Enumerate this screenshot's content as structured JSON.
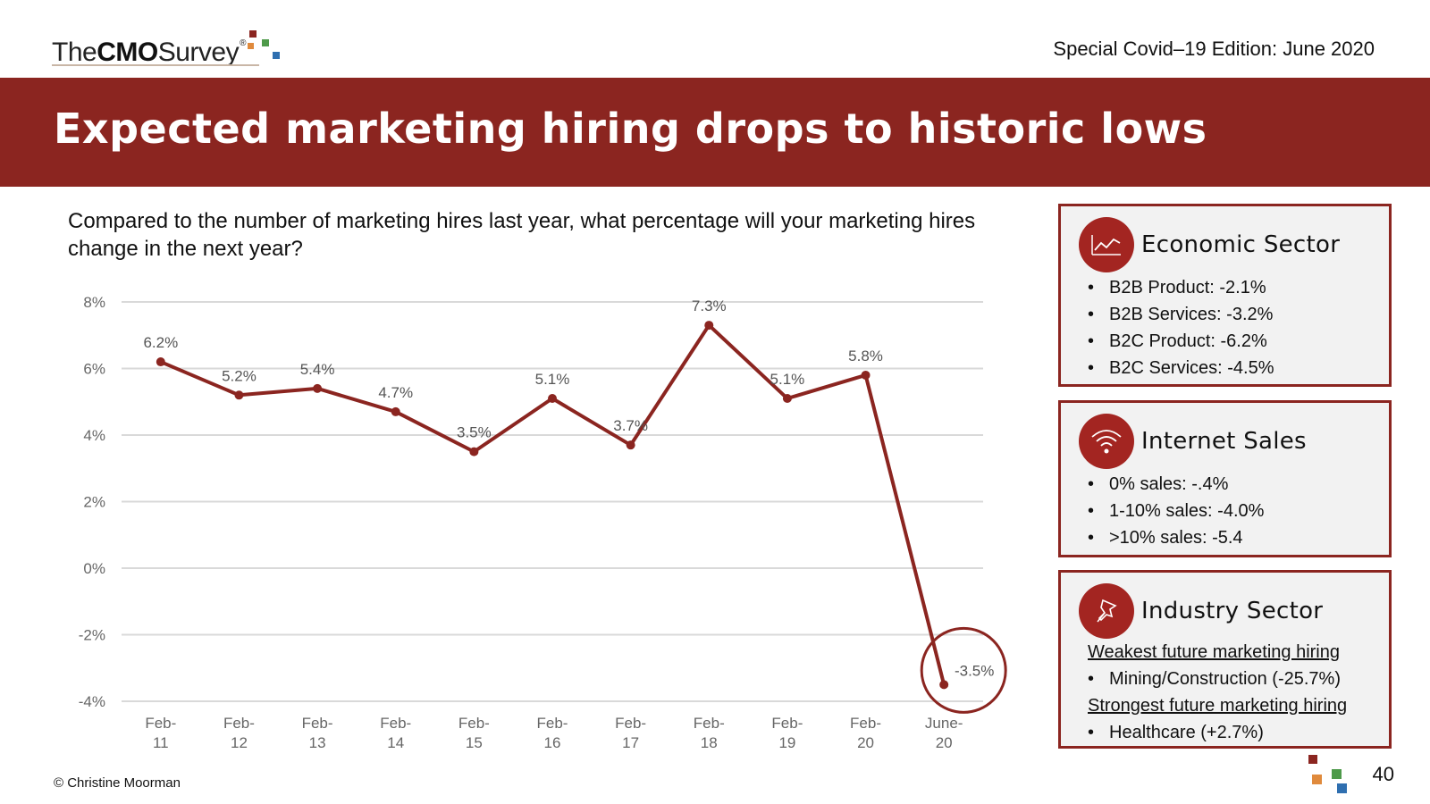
{
  "header": {
    "logo": {
      "the": "The",
      "cmo": "CMO",
      "survey": "Survey",
      "reg": "®"
    },
    "edition": "Special Covid–19 Edition: June 2020",
    "title": "Expected marketing hiring drops to historic lows"
  },
  "question": "Compared to the number of marketing hires last year, what percentage will your marketing hires change in the next year?",
  "colors": {
    "brand": "#8b2520",
    "line": "#8b2520",
    "grid": "#d9d9d9",
    "logo_red": "#8b2520",
    "logo_orange": "#e08a3c",
    "logo_green": "#4e9a4a",
    "logo_blue": "#2f6fb0"
  },
  "chart_data": {
    "type": "line",
    "categories": [
      "Feb-11",
      "Feb-12",
      "Feb-13",
      "Feb-14",
      "Feb-15",
      "Feb-16",
      "Feb-17",
      "Feb-18",
      "Feb-19",
      "Feb-20",
      "June-20"
    ],
    "values": [
      6.2,
      5.2,
      5.4,
      4.7,
      3.5,
      5.1,
      3.7,
      7.3,
      5.1,
      5.8,
      -3.5
    ],
    "data_labels": [
      "6.2%",
      "5.2%",
      "5.4%",
      "4.7%",
      "3.5%",
      "5.1%",
      "3.7%",
      "7.3%",
      "5.1%",
      "5.8%",
      "-3.5%"
    ],
    "ylim": [
      -4,
      8
    ],
    "yticks": [
      "-4%",
      "-2%",
      "0%",
      "2%",
      "4%",
      "6%",
      "8%"
    ],
    "grid": true,
    "highlight": "June-20"
  },
  "panels": {
    "economic": {
      "title": "Economic Sector",
      "icon": "line-chart-icon",
      "items": [
        "B2B Product: -2.1%",
        "B2B Services: -3.2%",
        "B2C Product: -6.2%",
        "B2C Services: -4.5%"
      ]
    },
    "internet": {
      "title": "Internet Sales",
      "icon": "wifi-icon",
      "items": [
        "0% sales: -.4%",
        "1-10% sales: -4.0%",
        ">10% sales: -5.4"
      ]
    },
    "industry": {
      "title": "Industry Sector",
      "icon": "pushpin-icon",
      "weakest_label": "Weakest future marketing hiring",
      "weakest_item": "Mining/Construction (-25.7%)",
      "strongest_label": "Strongest future marketing hiring",
      "strongest_item": "Healthcare (+2.7%)"
    }
  },
  "footer": {
    "copyright": "© Christine Moorman",
    "page": "40"
  }
}
